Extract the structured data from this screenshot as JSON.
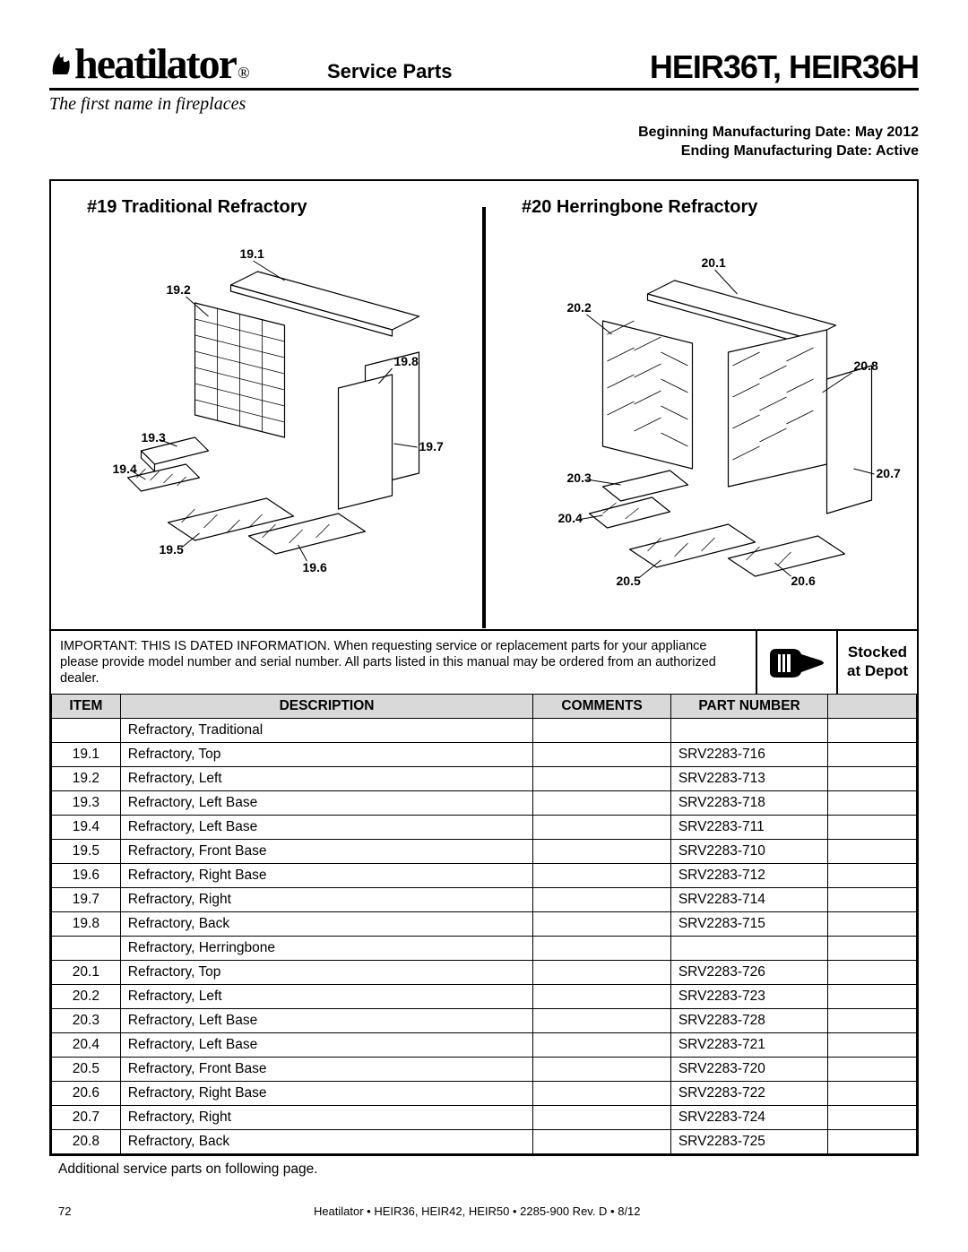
{
  "header": {
    "logo_text": "heatilator",
    "tagline": "The first name in fireplaces",
    "section": "Service Parts",
    "model": "HEIR36T, HEIR36H",
    "begin_date": "Beginning Manufacturing Date: May 2012",
    "end_date": "Ending Manufacturing Date: Active"
  },
  "diagrams": {
    "left_title": "#19 Traditional Refractory",
    "right_title": "#20 Herringbone Refractory",
    "left_callouts": [
      "19.1",
      "19.2",
      "19.3",
      "19.4",
      "19.5",
      "19.6",
      "19.7",
      "19.8"
    ],
    "right_callouts": [
      "20.1",
      "20.2",
      "20.3",
      "20.4",
      "20.5",
      "20.6",
      "20.7",
      "20.8"
    ],
    "svg": {
      "stroke": "#000000",
      "fill": "#ffffff",
      "stroke_width": 1.2
    }
  },
  "important_note": "IMPORTANT: THIS IS DATED INFORMATION. When requesting service or replacement parts for your appliance please provide model number and serial number. All parts listed in this manual may be ordered from an authorized dealer.",
  "stocked_label": [
    "Stocked",
    "at Depot"
  ],
  "table": {
    "columns": [
      "ITEM",
      "DESCRIPTION",
      "COMMENTS",
      "PART NUMBER",
      ""
    ],
    "col_align": [
      "center",
      "left",
      "left",
      "left",
      "left"
    ],
    "rows": [
      [
        "",
        "Refractory, Traditional",
        "",
        "",
        ""
      ],
      [
        "19.1",
        "Refractory, Top",
        "",
        "SRV2283-716",
        ""
      ],
      [
        "19.2",
        "Refractory, Left",
        "",
        "SRV2283-713",
        ""
      ],
      [
        "19.3",
        "Refractory, Left Base",
        "",
        "SRV2283-718",
        ""
      ],
      [
        "19.4",
        "Refractory, Left Base",
        "",
        "SRV2283-711",
        ""
      ],
      [
        "19.5",
        "Refractory, Front Base",
        "",
        "SRV2283-710",
        ""
      ],
      [
        "19.6",
        "Refractory, Right Base",
        "",
        "SRV2283-712",
        ""
      ],
      [
        "19.7",
        "Refractory, Right",
        "",
        "SRV2283-714",
        ""
      ],
      [
        "19.8",
        "Refractory, Back",
        "",
        "SRV2283-715",
        ""
      ],
      [
        "",
        "Refractory, Herringbone",
        "",
        "",
        ""
      ],
      [
        "20.1",
        "Refractory, Top",
        "",
        "SRV2283-726",
        ""
      ],
      [
        "20.2",
        "Refractory, Left",
        "",
        "SRV2283-723",
        ""
      ],
      [
        "20.3",
        "Refractory, Left Base",
        "",
        "SRV2283-728",
        ""
      ],
      [
        "20.4",
        "Refractory, Left Base",
        "",
        "SRV2283-721",
        ""
      ],
      [
        "20.5",
        "Refractory, Front Base",
        "",
        "SRV2283-720",
        ""
      ],
      [
        "20.6",
        "Refractory, Right Base",
        "",
        "SRV2283-722",
        ""
      ],
      [
        "20.7",
        "Refractory, Right",
        "",
        "SRV2283-724",
        ""
      ],
      [
        "20.8",
        "Refractory, Back",
        "",
        "SRV2283-725",
        ""
      ]
    ]
  },
  "after_table": "Additional service parts on following page.",
  "footer": {
    "page": "72",
    "center": "Heatilator  •  HEIR36, HEIR42, HEIR50  •  2285-900 Rev. D  •  8/12"
  },
  "colors": {
    "header_gray": "#d9d9d9",
    "border": "#000000"
  }
}
